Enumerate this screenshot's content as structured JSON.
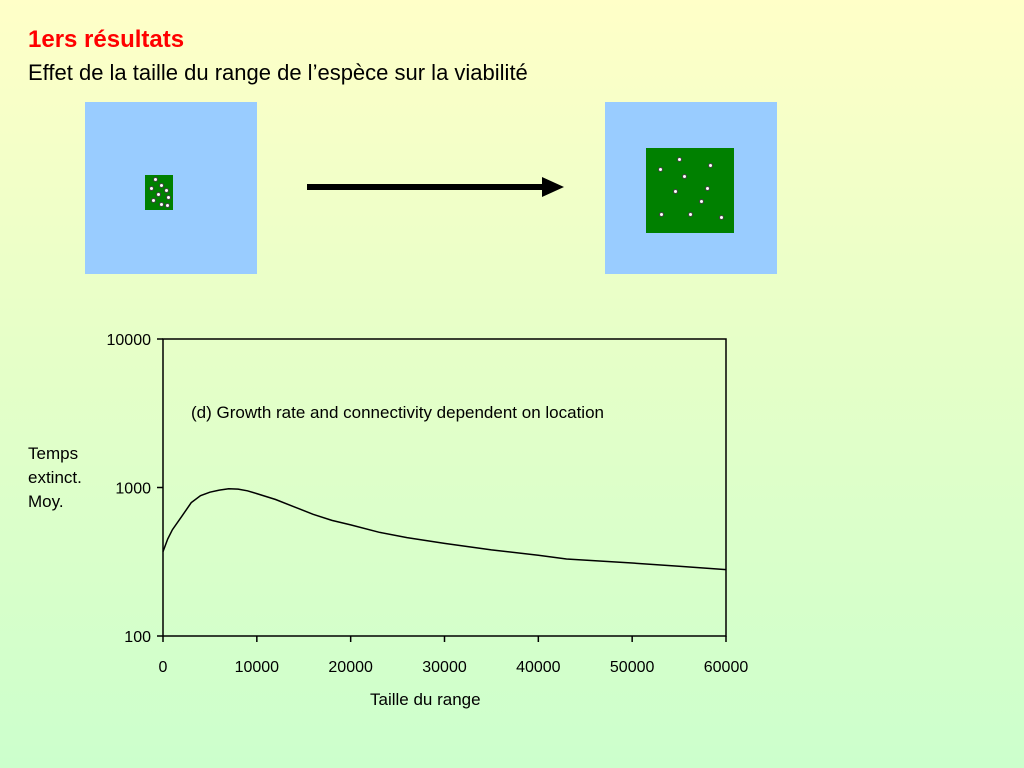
{
  "slide": {
    "title": "1ers résultats",
    "subtitle": "Effet de la taille du range de l’espèce sur la viabilité",
    "title_color": "#ff0000",
    "sea_color": "#99ccff",
    "range_color": "#008000",
    "left_panel_icon": "small-range-map",
    "right_panel_icon": "large-range-map",
    "arrow_icon": "right-arrow-icon"
  },
  "chart_data": {
    "type": "line",
    "annotation": "(d) Growth rate and connectivity dependent on location",
    "xlabel": "Taille du range",
    "ylabel_lines": [
      "Temps",
      "extinct.",
      "Moy."
    ],
    "xlim": [
      0,
      60000
    ],
    "ylim": [
      100,
      10000
    ],
    "yscale": "log",
    "grid": false,
    "x_ticks": [
      "0",
      "10000",
      "20000",
      "30000",
      "40000",
      "50000",
      "60000"
    ],
    "y_ticks": [
      "100",
      "1000",
      "10000"
    ],
    "series": [
      {
        "x": [
          0,
          500,
          1000,
          2000,
          3000,
          4000,
          5000,
          6000,
          7000,
          8000,
          9000,
          10000,
          12000,
          14000,
          16000,
          18000,
          20000,
          23000,
          26000,
          30000,
          35000,
          40000,
          43000,
          50000,
          55000,
          60000
        ],
        "y": [
          370,
          450,
          520,
          640,
          790,
          880,
          930,
          960,
          980,
          975,
          950,
          910,
          830,
          740,
          660,
          600,
          560,
          500,
          460,
          420,
          380,
          350,
          330,
          310,
          295,
          280
        ]
      }
    ]
  }
}
